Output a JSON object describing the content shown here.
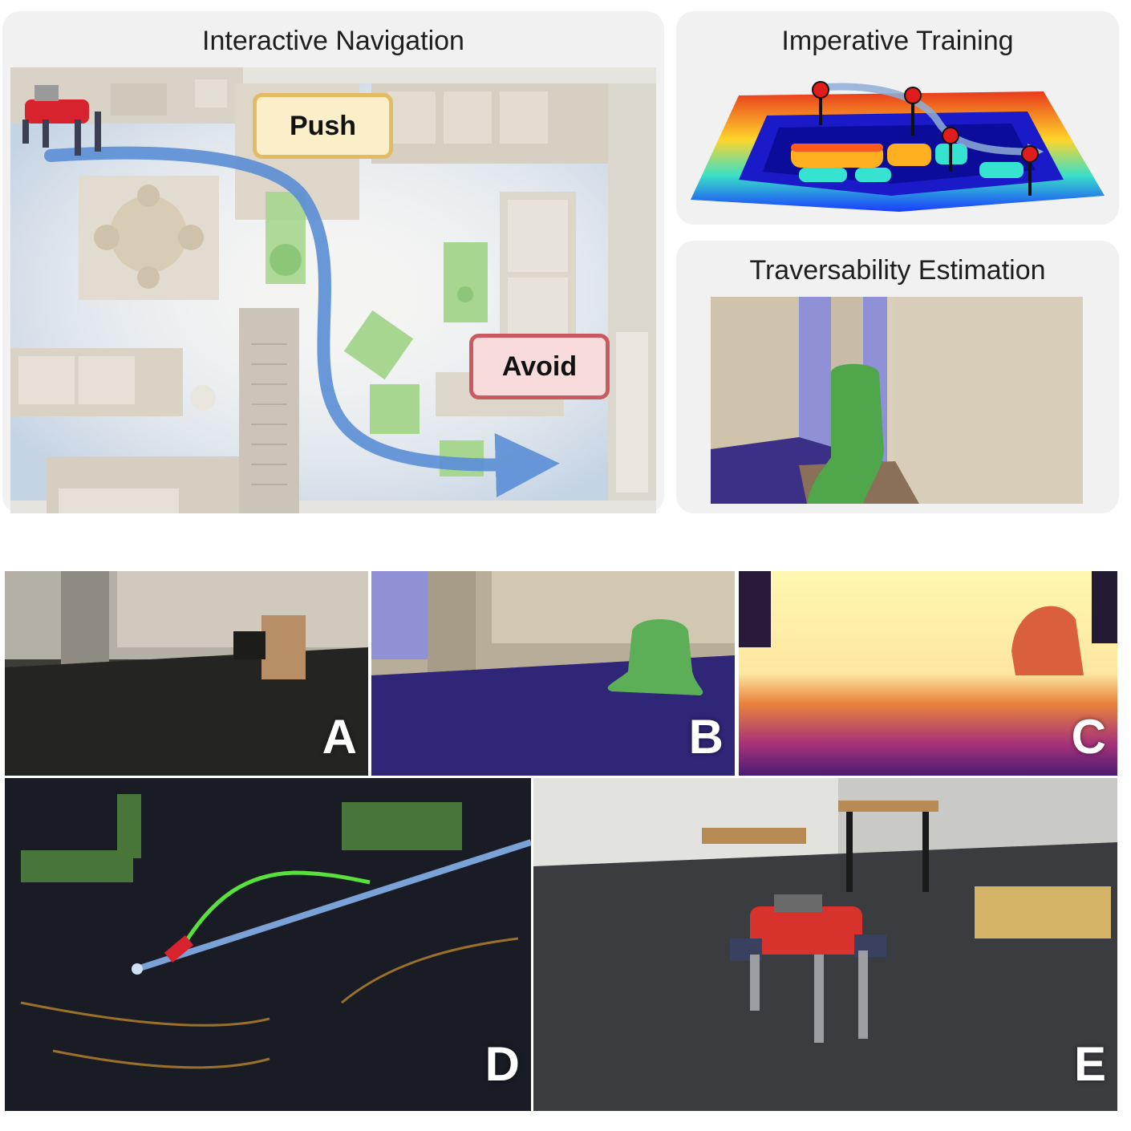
{
  "panels": {
    "interactive_navigation": {
      "title": "Interactive Navigation",
      "push_label": "Push",
      "avoid_label": "Avoid"
    },
    "imperative_training": {
      "title": "Imperative Training"
    },
    "traversability_estimation": {
      "title": "Traversability Estimation"
    }
  },
  "tiles": [
    {
      "letter": "A"
    },
    {
      "letter": "B"
    },
    {
      "letter": "C"
    },
    {
      "letter": "D"
    },
    {
      "letter": "E"
    }
  ],
  "colors": {
    "path_blue": "#5b8fd6",
    "pushable_green": "#9fd48a",
    "push_tag": "#e2bb63",
    "avoid_tag": "#c95a5f",
    "traversable_purple": "#3b2f86",
    "obstacle_green": "#4fa64b",
    "trajectory_green": "#5ae03c"
  },
  "icons": [
    "robot-icon",
    "waypoint-pin-icon",
    "path-arrow-icon"
  ]
}
